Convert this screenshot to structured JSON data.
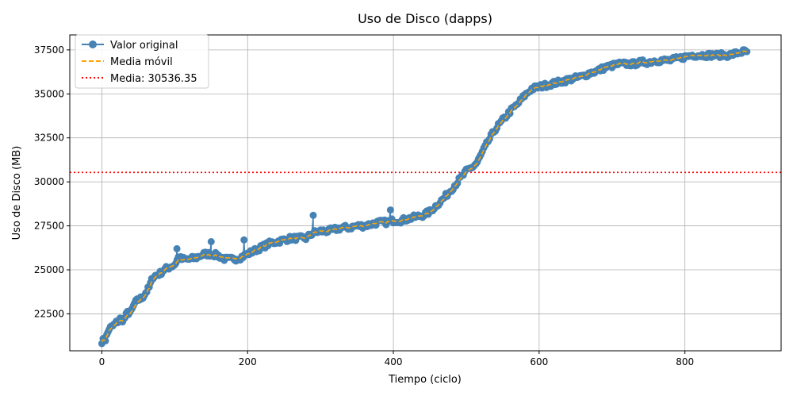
{
  "chart_data": {
    "type": "line",
    "title": "Uso de Disco (dapps)",
    "xlabel": "Tiempo (ciclo)",
    "ylabel": "Uso de Disco (MB)",
    "xlim": [
      -44,
      932
    ],
    "ylim": [
      20400,
      38350
    ],
    "xticks": [
      0,
      200,
      400,
      600,
      800
    ],
    "yticks": [
      22500,
      25000,
      27500,
      30000,
      32500,
      35000,
      37500
    ],
    "grid": true,
    "legend_position": "upper left",
    "colors": {
      "original": "#4682b4",
      "moving_average": "#ffa500",
      "mean": "#ff0000"
    },
    "series": [
      {
        "name": "Valor original",
        "style": "line-with-markers",
        "keypoints": [
          [
            0,
            20950
          ],
          [
            5,
            21050
          ],
          [
            10,
            21650
          ],
          [
            15,
            21800
          ],
          [
            20,
            22000
          ],
          [
            25,
            22200
          ],
          [
            30,
            22150
          ],
          [
            35,
            22550
          ],
          [
            40,
            22600
          ],
          [
            45,
            23100
          ],
          [
            50,
            23300
          ],
          [
            55,
            23400
          ],
          [
            60,
            23700
          ],
          [
            65,
            24000
          ],
          [
            70,
            24600
          ],
          [
            75,
            24700
          ],
          [
            80,
            24800
          ],
          [
            85,
            25000
          ],
          [
            90,
            25100
          ],
          [
            100,
            25300
          ],
          [
            105,
            25700
          ],
          [
            110,
            25600
          ],
          [
            120,
            25600
          ],
          [
            130,
            25700
          ],
          [
            140,
            25900
          ],
          [
            150,
            25900
          ],
          [
            160,
            25800
          ],
          [
            170,
            25600
          ],
          [
            180,
            25600
          ],
          [
            190,
            25700
          ],
          [
            200,
            25900
          ],
          [
            210,
            26100
          ],
          [
            220,
            26300
          ],
          [
            230,
            26500
          ],
          [
            240,
            26600
          ],
          [
            250,
            26700
          ],
          [
            260,
            26800
          ],
          [
            270,
            26800
          ],
          [
            280,
            26800
          ],
          [
            290,
            27100
          ],
          [
            300,
            27200
          ],
          [
            310,
            27200
          ],
          [
            320,
            27300
          ],
          [
            330,
            27400
          ],
          [
            340,
            27400
          ],
          [
            350,
            27500
          ],
          [
            360,
            27500
          ],
          [
            370,
            27600
          ],
          [
            380,
            27700
          ],
          [
            390,
            27700
          ],
          [
            400,
            27800
          ],
          [
            410,
            27800
          ],
          [
            420,
            27900
          ],
          [
            430,
            28000
          ],
          [
            440,
            28100
          ],
          [
            450,
            28300
          ],
          [
            460,
            28700
          ],
          [
            470,
            29100
          ],
          [
            480,
            29600
          ],
          [
            490,
            30100
          ],
          [
            500,
            30600
          ],
          [
            510,
            30900
          ],
          [
            515,
            31100
          ],
          [
            520,
            31500
          ],
          [
            530,
            32300
          ],
          [
            540,
            33000
          ],
          [
            550,
            33500
          ],
          [
            560,
            34000
          ],
          [
            570,
            34400
          ],
          [
            580,
            34900
          ],
          [
            590,
            35300
          ],
          [
            600,
            35400
          ],
          [
            610,
            35500
          ],
          [
            620,
            35600
          ],
          [
            630,
            35700
          ],
          [
            640,
            35800
          ],
          [
            650,
            35900
          ],
          [
            660,
            36000
          ],
          [
            670,
            36200
          ],
          [
            680,
            36300
          ],
          [
            690,
            36500
          ],
          [
            700,
            36600
          ],
          [
            710,
            36700
          ],
          [
            720,
            36700
          ],
          [
            730,
            36700
          ],
          [
            740,
            36800
          ],
          [
            750,
            36800
          ],
          [
            760,
            36900
          ],
          [
            770,
            36900
          ],
          [
            780,
            36900
          ],
          [
            790,
            37000
          ],
          [
            800,
            37100
          ],
          [
            810,
            37200
          ],
          [
            820,
            37200
          ],
          [
            830,
            37200
          ],
          [
            840,
            37200
          ],
          [
            850,
            37200
          ],
          [
            860,
            37200
          ],
          [
            870,
            37300
          ],
          [
            880,
            37400
          ],
          [
            885,
            37400
          ]
        ],
        "outliers": [
          [
            103,
            26200
          ],
          [
            150,
            26600
          ],
          [
            195,
            26700
          ],
          [
            290,
            28100
          ],
          [
            396,
            28400
          ]
        ]
      },
      {
        "name": "Media móvil",
        "style": "dashed",
        "keypoints": [
          [
            0,
            20950
          ],
          [
            5,
            21050
          ],
          [
            10,
            21550
          ],
          [
            15,
            21750
          ],
          [
            20,
            21950
          ],
          [
            25,
            22100
          ],
          [
            30,
            22150
          ],
          [
            35,
            22400
          ],
          [
            40,
            22550
          ],
          [
            45,
            22900
          ],
          [
            50,
            23200
          ],
          [
            55,
            23350
          ],
          [
            60,
            23600
          ],
          [
            65,
            23950
          ],
          [
            70,
            24450
          ],
          [
            75,
            24650
          ],
          [
            80,
            24800
          ],
          [
            85,
            24950
          ],
          [
            90,
            25100
          ],
          [
            100,
            25300
          ],
          [
            105,
            25550
          ],
          [
            110,
            25550
          ],
          [
            120,
            25600
          ],
          [
            130,
            25700
          ],
          [
            140,
            25850
          ],
          [
            150,
            25850
          ],
          [
            160,
            25800
          ],
          [
            170,
            25650
          ],
          [
            180,
            25650
          ],
          [
            190,
            25700
          ],
          [
            200,
            25900
          ],
          [
            210,
            26100
          ],
          [
            220,
            26300
          ],
          [
            230,
            26500
          ],
          [
            240,
            26600
          ],
          [
            250,
            26700
          ],
          [
            260,
            26800
          ],
          [
            270,
            26800
          ],
          [
            280,
            26800
          ],
          [
            290,
            27100
          ],
          [
            300,
            27200
          ],
          [
            310,
            27200
          ],
          [
            320,
            27300
          ],
          [
            330,
            27400
          ],
          [
            340,
            27400
          ],
          [
            350,
            27500
          ],
          [
            360,
            27500
          ],
          [
            370,
            27600
          ],
          [
            380,
            27700
          ],
          [
            390,
            27700
          ],
          [
            400,
            27800
          ],
          [
            410,
            27800
          ],
          [
            420,
            27900
          ],
          [
            430,
            28000
          ],
          [
            440,
            28100
          ],
          [
            450,
            28250
          ],
          [
            460,
            28650
          ],
          [
            470,
            29050
          ],
          [
            480,
            29550
          ],
          [
            490,
            30050
          ],
          [
            500,
            30550
          ],
          [
            510,
            30850
          ],
          [
            515,
            31050
          ],
          [
            520,
            31450
          ],
          [
            530,
            32250
          ],
          [
            540,
            32950
          ],
          [
            550,
            33450
          ],
          [
            560,
            33950
          ],
          [
            570,
            34350
          ],
          [
            580,
            34850
          ],
          [
            590,
            35250
          ],
          [
            600,
            35400
          ],
          [
            610,
            35500
          ],
          [
            620,
            35600
          ],
          [
            630,
            35700
          ],
          [
            640,
            35800
          ],
          [
            650,
            35900
          ],
          [
            660,
            36000
          ],
          [
            670,
            36200
          ],
          [
            680,
            36300
          ],
          [
            690,
            36500
          ],
          [
            700,
            36600
          ],
          [
            710,
            36700
          ],
          [
            720,
            36700
          ],
          [
            730,
            36700
          ],
          [
            740,
            36800
          ],
          [
            750,
            36800
          ],
          [
            760,
            36900
          ],
          [
            770,
            36900
          ],
          [
            780,
            36900
          ],
          [
            790,
            37000
          ],
          [
            800,
            37100
          ],
          [
            810,
            37200
          ],
          [
            820,
            37200
          ],
          [
            830,
            37200
          ],
          [
            840,
            37200
          ],
          [
            850,
            37200
          ],
          [
            860,
            37200
          ],
          [
            870,
            37300
          ],
          [
            880,
            37400
          ],
          [
            885,
            37400
          ]
        ]
      },
      {
        "name": "Media: 30536.35",
        "style": "dotted-horizontal",
        "value": 30536.35
      }
    ]
  }
}
